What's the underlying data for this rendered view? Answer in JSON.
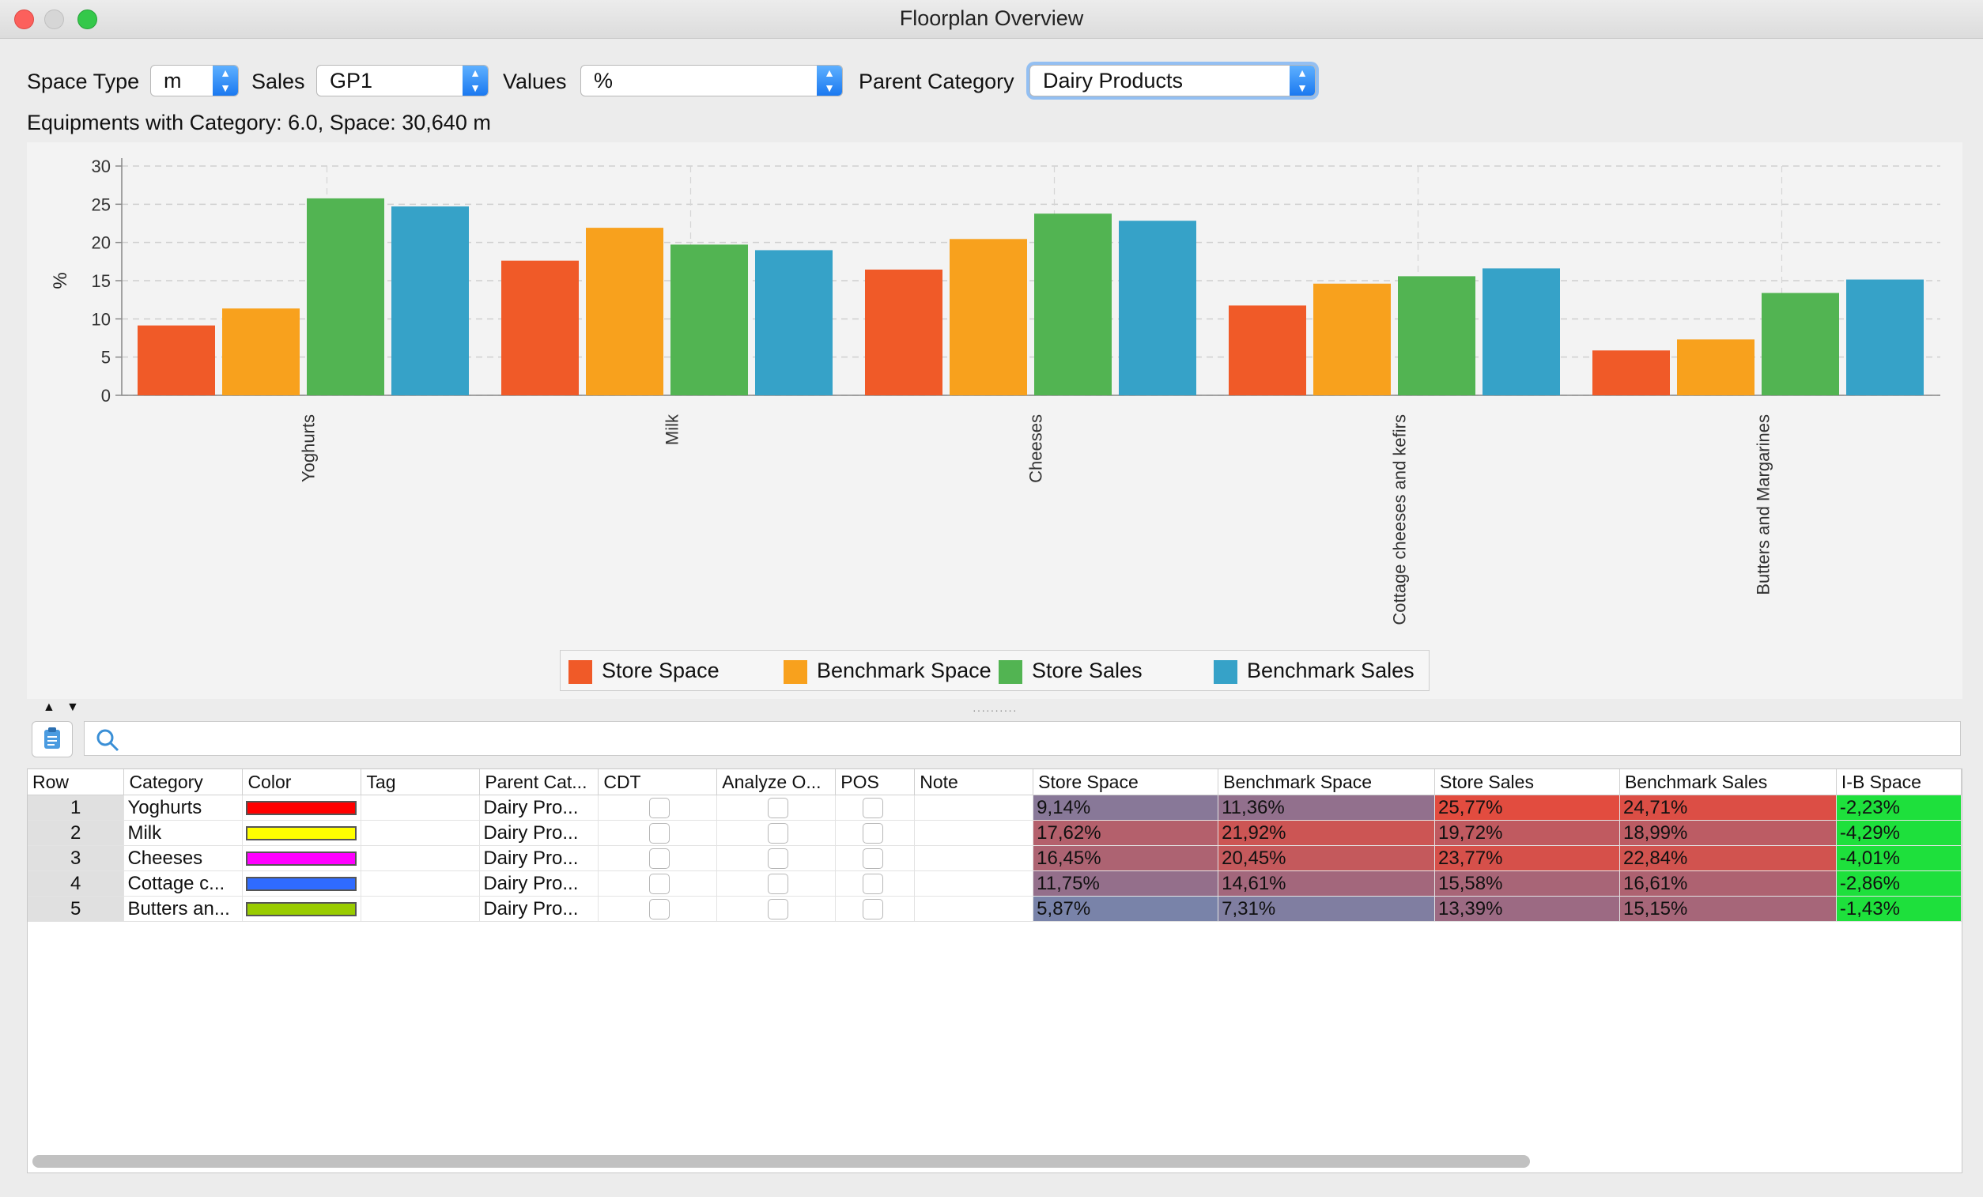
{
  "window": {
    "title": "Floorplan Overview"
  },
  "controls": {
    "space_type_label": "Space Type",
    "space_type_value": "m",
    "sales_label": "Sales",
    "sales_value": "GP1",
    "values_label": "Values",
    "values_value": "%",
    "parent_category_label": "Parent Category",
    "parent_category_value": "Dairy Products"
  },
  "info_text": "Equipments with Category: 6.0, Space: 30,640 m",
  "chart_data": {
    "type": "bar",
    "categories": [
      "Yoghurts",
      "Milk",
      "Cheeses",
      "Cottage cheeses and kefirs",
      "Butters and Margarines"
    ],
    "series": [
      {
        "name": "Store Space",
        "color": "#f05a28",
        "values": [
          9.14,
          17.62,
          16.45,
          11.75,
          5.87
        ]
      },
      {
        "name": "Benchmark Space",
        "color": "#f8a11d",
        "values": [
          11.36,
          21.92,
          20.45,
          14.61,
          7.31
        ]
      },
      {
        "name": "Store Sales",
        "color": "#52b452",
        "values": [
          25.77,
          19.72,
          23.77,
          15.58,
          13.39
        ]
      },
      {
        "name": "Benchmark Sales",
        "color": "#36a2c8",
        "values": [
          24.71,
          18.99,
          22.84,
          16.61,
          15.15
        ]
      }
    ],
    "ylabel": "%",
    "ylim": [
      0,
      30
    ],
    "yticks": [
      "0",
      "5",
      "10",
      "15",
      "20",
      "25",
      "30"
    ],
    "grid": true,
    "legend_position": "bottom"
  },
  "table": {
    "columns": [
      "Row",
      "Category",
      "Color",
      "Tag",
      "Parent Cat...",
      "CDT",
      "Analyze O...",
      "POS",
      "Note",
      "Store Space",
      "Benchmark Space",
      "Store Sales",
      "Benchmark Sales",
      "I-B Space"
    ],
    "rows": [
      {
        "row": "1",
        "category": "Yoghurts",
        "color": "#ff0000",
        "tag": "",
        "parent": "Dairy Pro...",
        "note": "",
        "store_space": "9,14%",
        "bench_space": "11,36%",
        "store_sales": "25,77%",
        "bench_sales": "24,71%",
        "ib_space": "-2,23%"
      },
      {
        "row": "2",
        "category": "Milk",
        "color": "#ffff00",
        "tag": "",
        "parent": "Dairy Pro...",
        "note": "",
        "store_space": "17,62%",
        "bench_space": "21,92%",
        "store_sales": "19,72%",
        "bench_sales": "18,99%",
        "ib_space": "-4,29%"
      },
      {
        "row": "3",
        "category": "Cheeses",
        "color": "#ff00ff",
        "tag": "",
        "parent": "Dairy Pro...",
        "note": "",
        "store_space": "16,45%",
        "bench_space": "20,45%",
        "store_sales": "23,77%",
        "bench_sales": "22,84%",
        "ib_space": "-4,01%"
      },
      {
        "row": "4",
        "category": "Cottage c...",
        "color": "#2f6bff",
        "tag": "",
        "parent": "Dairy Pro...",
        "note": "",
        "store_space": "11,75%",
        "bench_space": "14,61%",
        "store_sales": "15,58%",
        "bench_sales": "16,61%",
        "ib_space": "-2,86%"
      },
      {
        "row": "5",
        "category": "Butters an...",
        "color": "#99cc00",
        "tag": "",
        "parent": "Dairy Pro...",
        "note": "",
        "store_space": "5,87%",
        "bench_space": "7,31%",
        "store_sales": "13,39%",
        "bench_sales": "15,15%",
        "ib_space": "-1,43%"
      }
    ],
    "heat_colors": {
      "low": "#5e96c6",
      "mid": "#9a6b85",
      "high": "#e34b3e",
      "positive_green": "#1ee03c"
    }
  },
  "search": {
    "placeholder": ""
  }
}
